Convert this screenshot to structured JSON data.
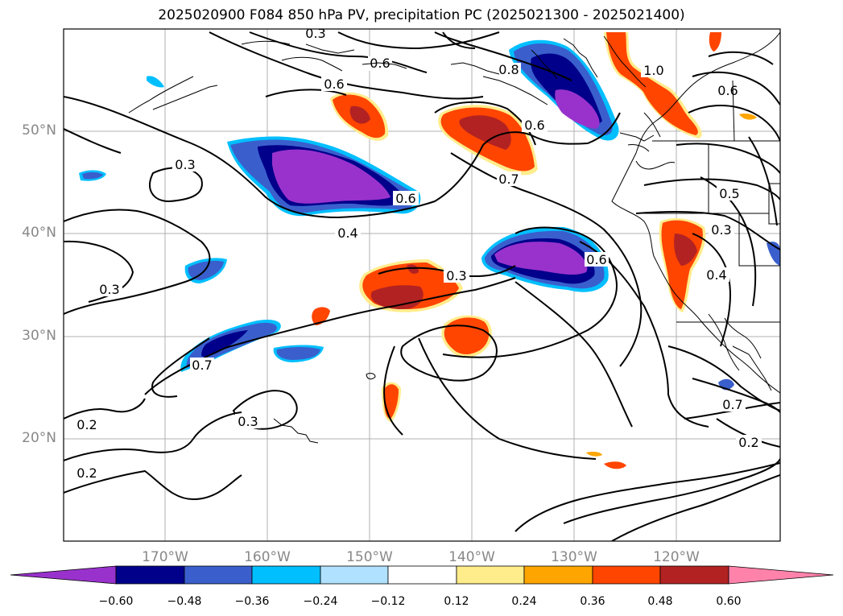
{
  "title": "2025020900 F084 850 hPa PV, precipitation PC (2025021300 - 2025021400)",
  "map": {
    "lat_labels": [
      "50°N",
      "40°N",
      "30°N",
      "20°N"
    ],
    "lon_labels": [
      "170°W",
      "160°W",
      "150°W",
      "140°W",
      "130°W",
      "120°W"
    ],
    "contour_labels": [
      "0.6",
      "0.6",
      "0.8",
      "1.0",
      "0.6",
      "0.6",
      "0.3",
      "0.6",
      "0.7",
      "0.5",
      "0.4",
      "0.3",
      "0.3",
      "0.4",
      "0.3",
      "0.2",
      "0.2",
      "0.3",
      "0.7",
      "0.7",
      "0.2",
      "0.6",
      "0.3"
    ]
  },
  "colorbar": {
    "ticks": [
      "−0.60",
      "−0.48",
      "−0.36",
      "−0.24",
      "−0.12",
      "0.12",
      "0.24",
      "0.36",
      "0.48",
      "0.60"
    ],
    "colors": [
      "#9932cc",
      "#00008b",
      "#3a5fcd",
      "#00bfff",
      "#b0e2ff",
      "#ffffff",
      "#ffec8b",
      "#ffa500",
      "#ff4500",
      "#b22222",
      "#ff82ab"
    ]
  }
}
